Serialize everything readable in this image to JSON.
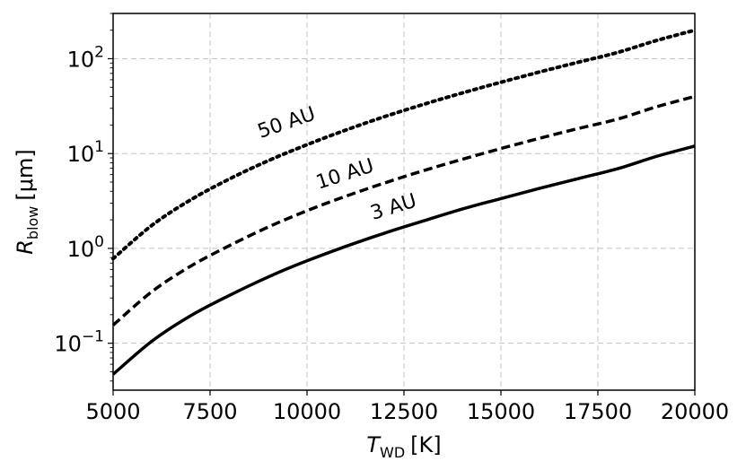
{
  "chart_data": {
    "type": "line",
    "xlabel": {
      "base": "T",
      "sub": "WD",
      "unit": "[K]"
    },
    "ylabel": {
      "base": "R",
      "sub": "blow",
      "unit": "[μm]"
    },
    "xlim": [
      5000,
      20000
    ],
    "ylim": [
      0.032,
      300
    ],
    "yscale": "log",
    "grid": true,
    "x_ticks": [
      5000,
      7500,
      10000,
      12500,
      15000,
      17500,
      20000
    ],
    "x_tick_labels": [
      "5000",
      "7500",
      "10000",
      "12500",
      "15000",
      "17500",
      "20000"
    ],
    "y_ticks": [
      0.1,
      1,
      10,
      100
    ],
    "y_tick_labels": [
      {
        "base": "10",
        "exp": "−1"
      },
      {
        "base": "10",
        "exp": "0"
      },
      {
        "base": "10",
        "exp": "1"
      },
      {
        "base": "10",
        "exp": "2"
      }
    ],
    "x": [
      5000,
      6000,
      7000,
      8000,
      9000,
      10000,
      11000,
      12000,
      13000,
      14000,
      15000,
      16000,
      17000,
      18000,
      19000,
      20000
    ],
    "series": [
      {
        "label": "3 AU",
        "style": "solid",
        "values": [
          0.047,
          0.105,
          0.195,
          0.32,
          0.5,
          0.74,
          1.05,
          1.45,
          1.95,
          2.6,
          3.35,
          4.3,
          5.45,
          6.9,
          9.3,
          12.0
        ]
      },
      {
        "label": "10 AU",
        "style": "dashed",
        "values": [
          0.155,
          0.35,
          0.65,
          1.07,
          1.68,
          2.5,
          3.55,
          4.9,
          6.6,
          8.7,
          11.3,
          14.5,
          18.4,
          23.0,
          31.0,
          40.0
        ]
      },
      {
        "label": "50 AU",
        "style": "dotted",
        "values": [
          0.78,
          1.75,
          3.25,
          5.4,
          8.4,
          12.4,
          17.7,
          24.5,
          33.0,
          43.5,
          56.5,
          72.5,
          92.0,
          116.0,
          155.0,
          200.0
        ]
      }
    ]
  }
}
